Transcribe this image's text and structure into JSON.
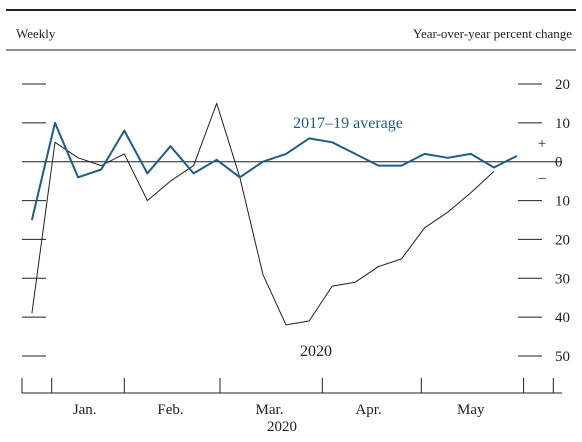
{
  "header": {
    "left_label": "Weekly",
    "right_label": "Year-over-year percent change"
  },
  "colors": {
    "avg_line": "#1f5c8b",
    "line_2020": "#231f20",
    "axis": "#231f20"
  },
  "chart_data": {
    "type": "line",
    "title": "",
    "xlabel": "2020",
    "ylabel": "Year-over-year percent change",
    "frequency": "Weekly",
    "x_tick_labels": [
      "Jan.",
      "Feb.",
      "Mar.",
      "Apr.",
      "May"
    ],
    "y_tick_labels": [
      "20",
      "10",
      "0",
      "10",
      "20",
      "30",
      "40",
      "50"
    ],
    "sign_labels": {
      "positive": "+",
      "negative": "–"
    },
    "ylim": [
      -50,
      20
    ],
    "y_ticks": [
      20,
      10,
      0,
      -10,
      -20,
      -30,
      -40,
      -50
    ],
    "grid": false,
    "zero_line": true,
    "x": [
      "2020-01-04",
      "2020-01-11",
      "2020-01-18",
      "2020-01-25",
      "2020-02-01",
      "2020-02-08",
      "2020-02-15",
      "2020-02-22",
      "2020-02-29",
      "2020-03-07",
      "2020-03-14",
      "2020-03-21",
      "2020-03-28",
      "2020-04-04",
      "2020-04-11",
      "2020-04-18",
      "2020-04-25",
      "2020-05-02",
      "2020-05-09",
      "2020-05-16",
      "2020-05-23",
      "2020-05-30"
    ],
    "series": [
      {
        "name": "2017–19 average",
        "values": [
          -15,
          10,
          -4,
          -2,
          8,
          -3,
          4,
          -3,
          0.5,
          -4,
          0,
          2,
          6,
          5,
          2,
          -1,
          -1,
          2,
          1,
          2,
          -1.5,
          1.5
        ]
      },
      {
        "name": "2020",
        "values": [
          -39,
          5,
          1,
          -1,
          2,
          -10,
          -5,
          -1,
          15,
          -4,
          -29,
          -42,
          -41,
          -32,
          -31,
          -27,
          -25,
          -17,
          -13,
          -8,
          -2.5,
          null
        ]
      }
    ],
    "annotations": [
      {
        "text": "2017–19 average",
        "series": "2017–19 average"
      },
      {
        "text": "2020",
        "series": "2020"
      }
    ]
  }
}
